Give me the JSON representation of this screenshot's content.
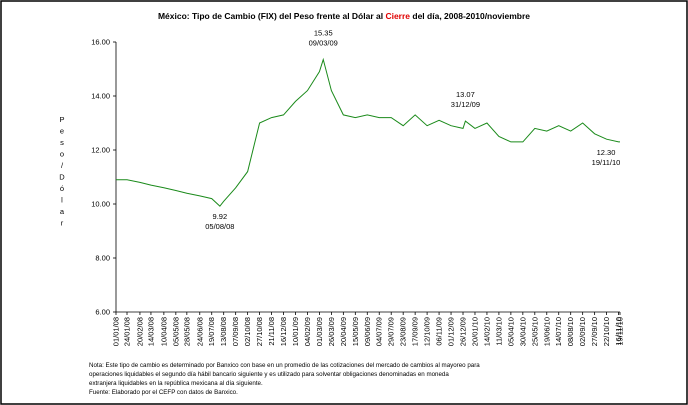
{
  "chart_data": {
    "type": "line",
    "title": [
      "México: Tipo de Cambio (FIX) del Peso frente al Dólar al ",
      "Cierre",
      " del día, 2008-2010/noviembre"
    ],
    "y_label": "Peso/Dólar",
    "x": [
      "01/01/08",
      "24/01/08",
      "20/02/08",
      "14/03/08",
      "10/04/08",
      "05/05/08",
      "28/05/08",
      "24/06/08",
      "19/07/08",
      "05/08/08",
      "13/08/08",
      "07/09/08",
      "02/10/08",
      "27/10/08",
      "21/11/08",
      "16/12/08",
      "10/01/09",
      "04/02/09",
      "01/03/09",
      "09/03/09",
      "26/03/09",
      "20/04/09",
      "15/05/09",
      "09/06/09",
      "04/07/09",
      "29/07/09",
      "23/08/09",
      "17/09/09",
      "12/10/09",
      "06/11/09",
      "01/12/09",
      "26/12/09",
      "31/12/09",
      "20/01/10",
      "14/02/10",
      "11/03/10",
      "05/04/10",
      "30/04/10",
      "25/05/10",
      "19/06/10",
      "14/07/10",
      "08/08/10",
      "02/09/10",
      "27/09/10",
      "22/10/10",
      "16/11/10",
      "19/11/10"
    ],
    "series": [
      {
        "name": "FIX",
        "color": "#1a8a1a",
        "values": [
          10.9,
          10.9,
          10.8,
          10.7,
          10.6,
          10.5,
          10.4,
          10.3,
          10.2,
          9.92,
          10.1,
          10.6,
          11.2,
          13.0,
          13.2,
          13.3,
          13.8,
          14.2,
          14.9,
          15.35,
          14.2,
          13.3,
          13.2,
          13.3,
          13.2,
          13.2,
          12.9,
          13.3,
          12.9,
          13.1,
          12.9,
          12.8,
          13.07,
          12.8,
          13.0,
          12.5,
          12.3,
          12.3,
          12.8,
          12.7,
          12.9,
          12.7,
          13.0,
          12.6,
          12.4,
          12.3,
          12.3
        ]
      }
    ],
    "xlim": [
      "01/01/08",
      "19/11/10"
    ],
    "xticks": [
      "01/01/08",
      "24/01/08",
      "20/02/08",
      "14/03/08",
      "10/04/08",
      "05/05/08",
      "28/05/08",
      "24/06/08",
      "19/07/08",
      "13/08/08",
      "07/09/08",
      "02/10/08",
      "27/10/08",
      "21/11/08",
      "16/12/08",
      "10/01/09",
      "04/02/09",
      "01/03/09",
      "26/03/09",
      "20/04/09",
      "15/05/09",
      "09/06/09",
      "04/07/09",
      "29/07/09",
      "23/08/09",
      "17/09/09",
      "12/10/09",
      "06/11/09",
      "01/12/09",
      "26/12/09",
      "20/01/10",
      "14/02/10",
      "11/03/10",
      "05/04/10",
      "30/04/10",
      "25/05/10",
      "19/06/10",
      "14/07/10",
      "08/08/10",
      "02/09/10",
      "27/09/10",
      "22/10/10",
      "16/11/10",
      "19/11/10"
    ],
    "ylim": [
      6,
      16
    ],
    "yticks": [
      {
        "value": 6,
        "label": "6.00"
      },
      {
        "value": 8,
        "label": "8.00"
      },
      {
        "value": 10,
        "label": "10.00"
      },
      {
        "value": 12,
        "label": "12.00"
      },
      {
        "value": 14,
        "label": "14.00"
      },
      {
        "value": 16,
        "label": "16.00"
      }
    ],
    "annotations": [
      {
        "x": "05/08/08",
        "value": 9.92
      },
      {
        "x": "09/03/09",
        "value": 15.35
      },
      {
        "x": "31/12/09",
        "value": 13.07
      },
      {
        "x": "19/11/10",
        "value": 12.3,
        "value_label": "12.30"
      }
    ],
    "notes": [
      "Nota: Este tipo de cambio es determinado por Banxico con base en un promedio de las cotizaciones del mercado de cambios al mayoreo para",
      "operaciones liquidables el segundo día hábil bancario siguiente y es utilizado para solventar obligaciones denominadas en moneda",
      "extranjera liquidables en la república mexicana al día siguiente.",
      "Fuente: Elaborado por el CEFP con datos de Banxico."
    ]
  }
}
